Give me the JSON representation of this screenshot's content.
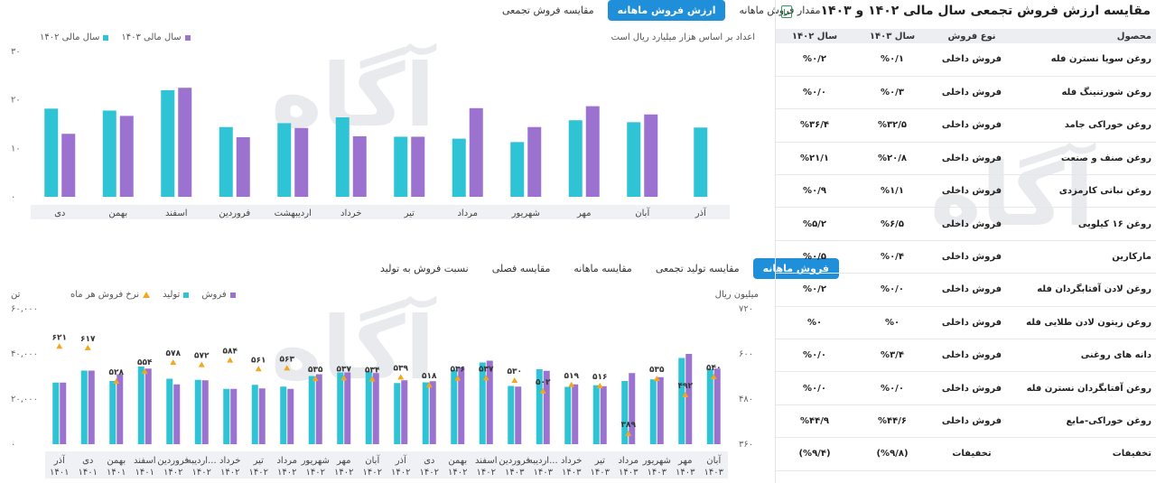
{
  "tabs_top": [
    {
      "label": "مقدار فروش ماهانه",
      "active": false
    },
    {
      "label": "ارزش فروش ماهانه",
      "active": true
    },
    {
      "label": "مقایسه فروش تجمعی",
      "active": false
    }
  ],
  "tabs_bottom": [
    {
      "label": "فروش ماهانه",
      "active": true
    },
    {
      "label": "مقایسه تولید تجمعی",
      "active": false
    },
    {
      "label": "مقایسه ماهانه",
      "active": false
    },
    {
      "label": "مقایسه فصلی",
      "active": false
    },
    {
      "label": "نسبت فروش به تولید",
      "active": false
    }
  ],
  "top_chart": {
    "note": "اعداد بر اساس هزار میلیارد ریال است",
    "legend": [
      {
        "label": "سال مالی ۱۴۰۳",
        "color": "#9b72cf"
      },
      {
        "label": "سال مالی ۱۴۰۲",
        "color": "#2ec4d6"
      }
    ]
  },
  "bottom_chart": {
    "unit_left": "تن",
    "unit_right": "میلیون ریال",
    "legend": [
      {
        "label": "فروش",
        "color": "#9b72cf",
        "shape": "square"
      },
      {
        "label": "تولید",
        "color": "#2ec4d6",
        "shape": "square"
      },
      {
        "label": "نرخ فروش هر ماه",
        "color": "#f2a71d",
        "shape": "triangle"
      }
    ]
  },
  "chart_data": [
    {
      "type": "bar",
      "title": "ارزش فروش ماهانه",
      "categories": [
        "آذر",
        "آبان",
        "مهر",
        "شهریور",
        "مرداد",
        "تیر",
        "خرداد",
        "اردیبهشت",
        "فروردین",
        "اسفند",
        "بهمن",
        "دی"
      ],
      "series": [
        {
          "name": "سال مالی ۱۴۰۲",
          "color": "#2ec4d6",
          "values": [
            14.3,
            15.4,
            15.8,
            11.3,
            12.0,
            12.4,
            16.4,
            15.2,
            14.4,
            22.0,
            17.8,
            18.2
          ]
        },
        {
          "name": "سال مالی ۱۴۰۳",
          "color": "#9b72cf",
          "values": [
            null,
            17.0,
            18.7,
            14.4,
            18.3,
            12.4,
            12.5,
            14.2,
            12.3,
            22.5,
            16.7,
            13.0
          ]
        }
      ],
      "y_ticks": [
        "۰",
        "۱۰",
        "۲۰",
        "۳۰"
      ],
      "ylim": [
        0,
        30
      ],
      "ylabel": "",
      "xlabel": "",
      "legend_position": "top-left"
    },
    {
      "type": "bar",
      "title": "فروش ماهانه",
      "categories": [
        "آبان ۱۴۰۳",
        "مهر ۱۴۰۳",
        "شهریور ۱۴۰۳",
        "مرداد ۱۴۰۳",
        "تیر ۱۴۰۳",
        "خرداد ۱۴۰۳",
        "اردیبه... ۱۴۰۳",
        "فروردین ۱۴۰۳",
        "اسفند ۱۴۰۲",
        "بهمن ۱۴۰۲",
        "دی ۱۴۰۲",
        "آذر ۱۴۰۲",
        "آبان ۱۴۰۲",
        "مهر ۱۴۰۲",
        "شهریور ۱۴۰۲",
        "مرداد ۱۴۰۲",
        "تیر ۱۴۰۲",
        "خرداد ۱۴۰۲",
        "اردیبه... ۱۴۰۲",
        "فروردین ۱۴۰۲",
        "اسفند ۱۴۰۱",
        "بهمن ۱۴۰۱",
        "دی ۱۴۰۱",
        "آذر ۱۴۰۱"
      ],
      "series": [
        {
          "name": "فروش",
          "color": "#9b72cf",
          "values": [
            33500,
            40000,
            29700,
            31500,
            25700,
            26500,
            32500,
            25500,
            37000,
            34000,
            27900,
            28300,
            31500,
            31800,
            31000,
            24500,
            24700,
            24500,
            28300,
            26500,
            33500,
            31000,
            32600,
            27300
          ]
        },
        {
          "name": "تولید",
          "color": "#2ec4d6",
          "values": [
            33200,
            38200,
            28700,
            28000,
            26100,
            25400,
            33200,
            25800,
            36200,
            32900,
            27400,
            27100,
            32100,
            31800,
            30200,
            25500,
            26300,
            24500,
            28500,
            29000,
            34400,
            28000,
            32600,
            27300
          ]
        }
      ],
      "rate_series": {
        "name": "نرخ فروش هر ماه",
        "color": "#f2a71d",
        "labels": [
          "۵۴۰",
          "۴۹۲",
          "۵۳۵",
          "۳۸۹",
          "۵۱۶",
          "۵۱۹",
          "۵۰۲",
          "۵۳۰",
          "۵۳۷",
          "۵۳۶",
          "۵۱۸",
          "۵۳۹",
          "۵۳۴",
          "۵۳۷",
          "۵۳۵",
          "۵۶۳",
          "۵۶۱",
          "۵۸۴",
          "۵۷۲",
          "۵۷۸",
          "۵۵۴",
          "۵۲۸",
          "۶۱۷",
          "۶۲۱"
        ],
        "values": [
          540,
          492,
          535,
          389,
          516,
          519,
          502,
          530,
          537,
          536,
          518,
          539,
          534,
          537,
          535,
          563,
          561,
          584,
          572,
          578,
          554,
          528,
          617,
          621
        ]
      },
      "y_ticks_left": [
        "۰",
        "۲۰,۰۰۰",
        "۴۰,۰۰۰",
        "۶۰,۰۰۰"
      ],
      "y_ticks_right": [
        "۳۶۰",
        "۴۸۰",
        "۶۰۰",
        "۷۲۰"
      ],
      "ylim": [
        0,
        60000
      ],
      "ylim_right": [
        360,
        720
      ],
      "ylabel": "تن",
      "ylabel_right": "میلیون ریال"
    }
  ],
  "panel": {
    "title": "مقایسه ارزش فروش تجمعی سال مالی ۱۴۰۲ و ۱۴۰۳",
    "export_icon": "excel-icon",
    "headers": {
      "product": "محصول",
      "type": "نوع فروش",
      "y1403": "سال ۱۴۰۳",
      "y1402": "سال ۱۴۰۲"
    },
    "rows": [
      {
        "product": "روغن سویا نسترن فله",
        "type": "فروش داخلی",
        "y1403": "%۰/۱",
        "y1402": "%۰/۲"
      },
      {
        "product": "روغن شورتنینگ فله",
        "type": "فروش داخلی",
        "y1403": "%۰/۳",
        "y1402": "%۰/۰"
      },
      {
        "product": "روغن خوراکی جامد",
        "type": "فروش داخلی",
        "y1403": "%۳۲/۵",
        "y1402": "%۳۶/۴"
      },
      {
        "product": "روغن صنف و صنعت",
        "type": "فروش داخلی",
        "y1403": "%۲۰/۸",
        "y1402": "%۲۱/۱"
      },
      {
        "product": "روغن نباتی کارمزدی",
        "type": "فروش داخلی",
        "y1403": "%۱/۱",
        "y1402": "%۰/۹"
      },
      {
        "product": "روغن ۱۶ کیلویی",
        "type": "فروش داخلی",
        "y1403": "%۶/۵",
        "y1402": "%۵/۲"
      },
      {
        "product": "مارکارین",
        "type": "فروش داخلی",
        "y1403": "%۰/۴",
        "y1402": "%۰/۵"
      },
      {
        "product": "روغن لادن آفتابگردان فله",
        "type": "فروش داخلی",
        "y1403": "%۰/۰",
        "y1402": "%۰/۲"
      },
      {
        "product": "روغن زیتون لادن طلایی فله",
        "type": "فروش داخلی",
        "y1403": "%۰",
        "y1402": "%۰"
      },
      {
        "product": "دانه های روغنی",
        "type": "فروش داخلی",
        "y1403": "%۳/۴",
        "y1402": "%۰/۰"
      },
      {
        "product": "روغن آفتابگردان نسترن فله",
        "type": "فروش داخلی",
        "y1403": "%۰/۰",
        "y1402": "%۰/۰"
      },
      {
        "product": "روغن خوراکی-مایع",
        "type": "فروش داخلی",
        "y1403": "%۴۴/۶",
        "y1402": "%۴۴/۹"
      },
      {
        "product": "تخفیفات",
        "type": "تخفیفات",
        "y1403": "(%۹/۸)",
        "y1402": "(%۹/۴)"
      }
    ]
  }
}
